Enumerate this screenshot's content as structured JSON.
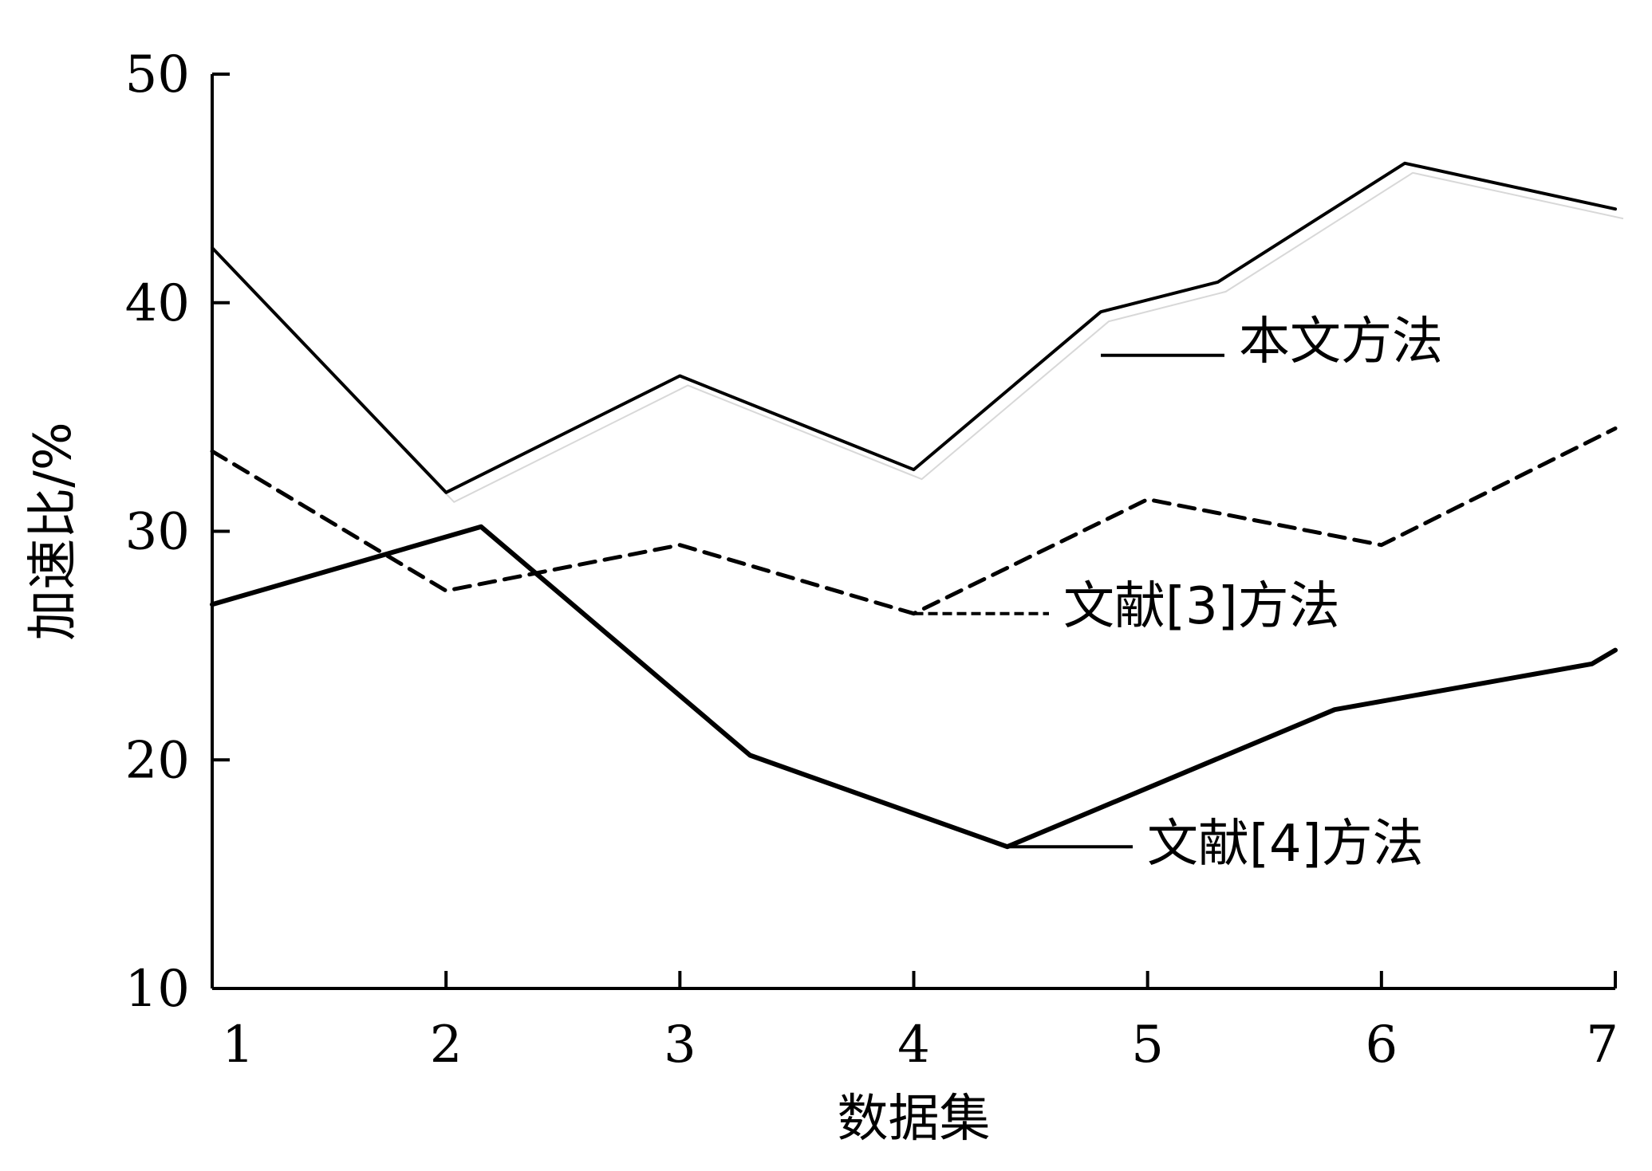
{
  "chart_data": {
    "type": "line",
    "title": "",
    "xlabel": "数据集",
    "ylabel": "加速比/%",
    "x": [
      1,
      2,
      3,
      4,
      5,
      6,
      7
    ],
    "xlim": [
      1,
      7
    ],
    "ylim": [
      10,
      50
    ],
    "yticks": [
      10,
      20,
      30,
      40,
      50
    ],
    "grid": false,
    "legend": "inline labels",
    "series": [
      {
        "name": "本文方法",
        "style": "solid",
        "color": "#000000",
        "points": [
          [
            1,
            42.4
          ],
          [
            2,
            31.7
          ],
          [
            3,
            36.8
          ],
          [
            4,
            32.7
          ],
          [
            4.8,
            39.6
          ],
          [
            5.3,
            40.9
          ],
          [
            6.1,
            46.1
          ],
          [
            7,
            44.1
          ]
        ],
        "label_anchor": [
          4.8,
          37.7
        ]
      },
      {
        "name": "文献[3]方法",
        "style": "dashed",
        "color": "#000000",
        "points": [
          [
            1,
            33.5
          ],
          [
            2,
            27.4
          ],
          [
            3,
            29.4
          ],
          [
            4,
            26.4
          ],
          [
            5,
            31.4
          ],
          [
            6,
            29.4
          ],
          [
            7,
            34.5
          ]
        ],
        "label_anchor": [
          4.0,
          26.4
        ]
      },
      {
        "name": "文献[4]方法",
        "style": "solid-thick",
        "color": "#000000",
        "points": [
          [
            1,
            26.8
          ],
          [
            2.15,
            30.2
          ],
          [
            3.3,
            20.2
          ],
          [
            4.4,
            16.2
          ],
          [
            5.8,
            22.2
          ],
          [
            6.9,
            24.2
          ],
          [
            7,
            24.8
          ]
        ],
        "label_anchor": [
          4.4,
          16.2
        ]
      }
    ]
  }
}
